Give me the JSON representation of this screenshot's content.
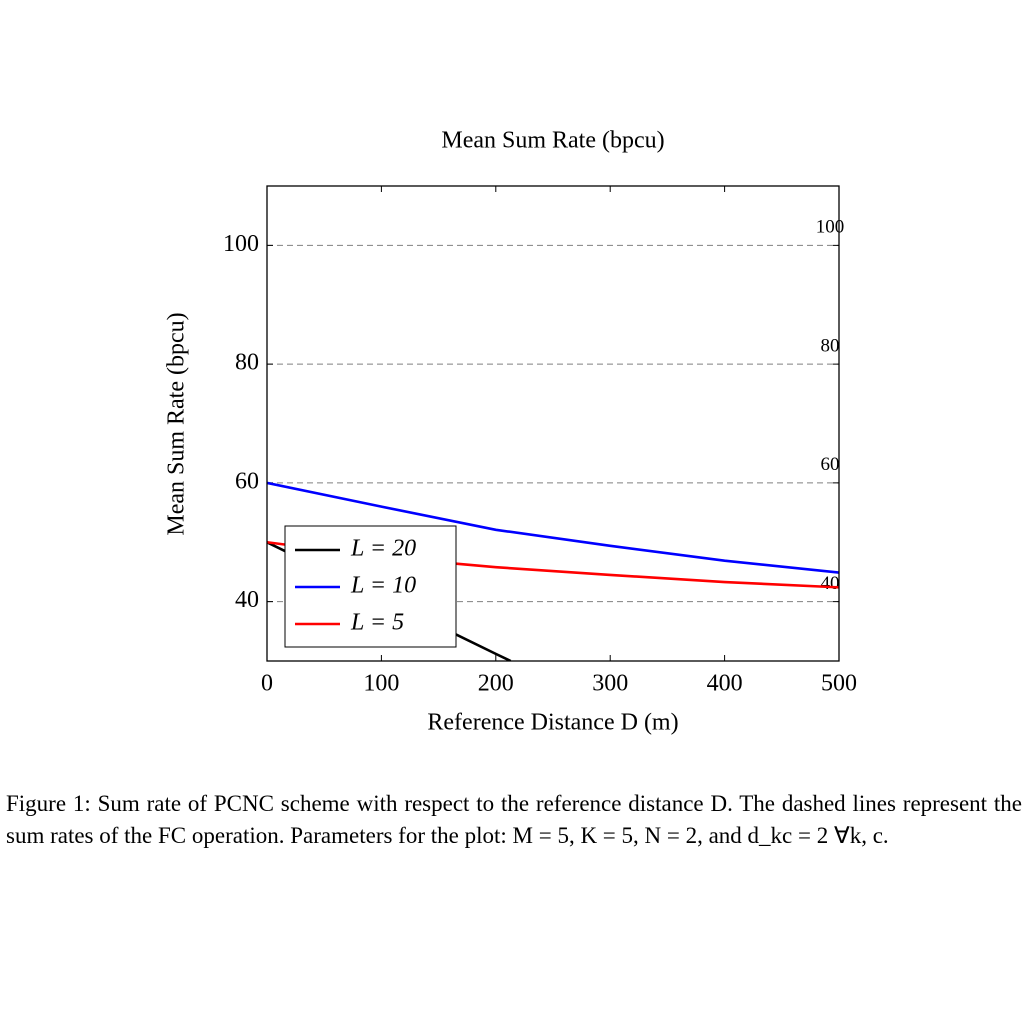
{
  "chart_data": {
    "type": "line",
    "title": "Mean Sum Rate (bpcu)",
    "xlabel": "Reference Distance D (m)",
    "ylabel": "Mean Sum Rate (bpcu)",
    "xlim": [
      0,
      500
    ],
    "xticks": [
      0,
      100,
      200,
      300,
      400,
      500
    ],
    "ylim": [
      30,
      110
    ],
    "yticks": [
      40,
      60,
      80,
      100
    ],
    "fc_lines": [
      40,
      60,
      80,
      100
    ],
    "legend": "lower left",
    "series": [
      {
        "name": "L = 20",
        "color": "#000000",
        "x": [
          0,
          50,
          100,
          150,
          200,
          213
        ],
        "values": [
          50,
          45.3,
          40.6,
          35.9,
          31.2,
          30
        ]
      },
      {
        "name": "L = 10",
        "color": "#0000ff",
        "x": [
          0,
          100,
          200,
          300,
          400,
          500
        ],
        "values": [
          60,
          56,
          52.1,
          49.4,
          46.9,
          44.9
        ]
      },
      {
        "name": "L = 5",
        "color": "#ff0000",
        "x": [
          0,
          100,
          200,
          300,
          400,
          500
        ],
        "values": [
          50,
          47.5,
          45.8,
          44.5,
          43.3,
          42.4
        ]
      }
    ]
  },
  "caption": "Figure 1: Sum rate of PCNC scheme with respect to the reference distance D. The dashed lines represent the sum rates of the FC operation. Parameters for the plot: M = 5, K = 5, N = 2, and d_kc = 2 ∀k, c."
}
